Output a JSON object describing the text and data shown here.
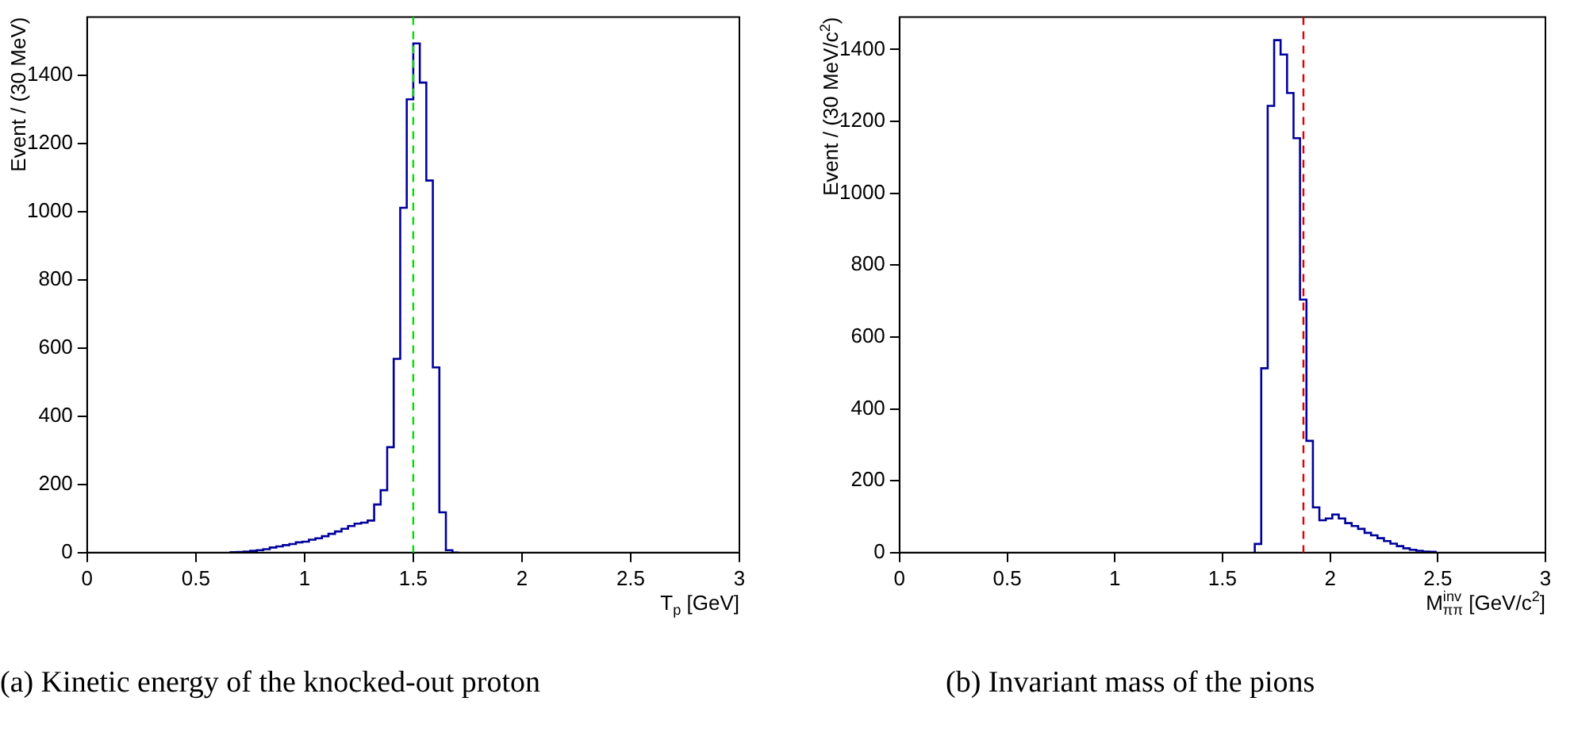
{
  "chart_data": [
    {
      "type": "histogram",
      "xlabel": "T$_{p}$ [GeV]",
      "ylabel": "Event / (30 MeV)",
      "annotations": [
        "(a)  Kinetic energy of the knocked-out proton"
      ],
      "bins": [
        0.66,
        0.69,
        0.72,
        0.75,
        0.78,
        0.81,
        0.84,
        0.87,
        0.9,
        0.93,
        0.96,
        0.99,
        1.02,
        1.05,
        1.08,
        1.11,
        1.14,
        1.17,
        1.2,
        1.23,
        1.26,
        1.29,
        1.32,
        1.35,
        1.38,
        1.41,
        1.44,
        1.47,
        1.5,
        1.53,
        1.56,
        1.59,
        1.62,
        1.65,
        1.68,
        1.71
      ],
      "values": [
        1,
        2,
        3,
        5,
        7,
        10,
        15,
        18,
        22,
        25,
        30,
        32,
        38,
        42,
        48,
        55,
        62,
        70,
        78,
        85,
        88,
        94,
        141,
        183,
        309,
        568,
        1011,
        1329,
        1493,
        1378,
        1091,
        543,
        118,
        7,
        0
      ],
      "color": "#00009c",
      "xlim": [
        0,
        3
      ],
      "xticks": [
        0,
        0.5,
        1,
        1.5,
        2,
        2.5,
        3
      ],
      "ylim": [
        0,
        1570
      ],
      "yticks": [
        0,
        200,
        400,
        600,
        800,
        1000,
        1200,
        1400
      ],
      "ref_lines": [
        {
          "axis": "x",
          "value": 1.5,
          "color": "#00e000",
          "line_style": "dashed"
        }
      ]
    },
    {
      "type": "histogram",
      "xlabel": "M$^{inv}$$_{ππ}$ [GeV/c$^{2}$]",
      "ylabel": "Event / (30 MeV/c$^{2}$)",
      "annotations": [
        "(b)  Invariant mass of the pions"
      ],
      "bins": [
        1.65,
        1.68,
        1.71,
        1.74,
        1.77,
        1.8,
        1.83,
        1.86,
        1.89,
        1.92,
        1.95,
        1.98,
        2.01,
        2.04,
        2.07,
        2.1,
        2.13,
        2.16,
        2.19,
        2.22,
        2.25,
        2.28,
        2.31,
        2.34,
        2.37,
        2.4,
        2.43,
        2.46,
        2.49
      ],
      "values": [
        24,
        513,
        1243,
        1426,
        1386,
        1279,
        1153,
        704,
        311,
        126,
        90,
        95,
        106,
        95,
        82,
        74,
        66,
        55,
        48,
        40,
        32,
        25,
        18,
        12,
        8,
        5,
        3,
        2
      ],
      "color": "#00009c",
      "xlim": [
        0,
        3
      ],
      "xticks": [
        0,
        0.5,
        1,
        1.5,
        2,
        2.5,
        3
      ],
      "ylim": [
        0,
        1490
      ],
      "yticks": [
        0,
        200,
        400,
        600,
        800,
        1000,
        1200,
        1400
      ],
      "ref_lines": [
        {
          "axis": "x",
          "value": 1.876,
          "color": "#e00000",
          "line_style": "dashed"
        }
      ]
    }
  ]
}
